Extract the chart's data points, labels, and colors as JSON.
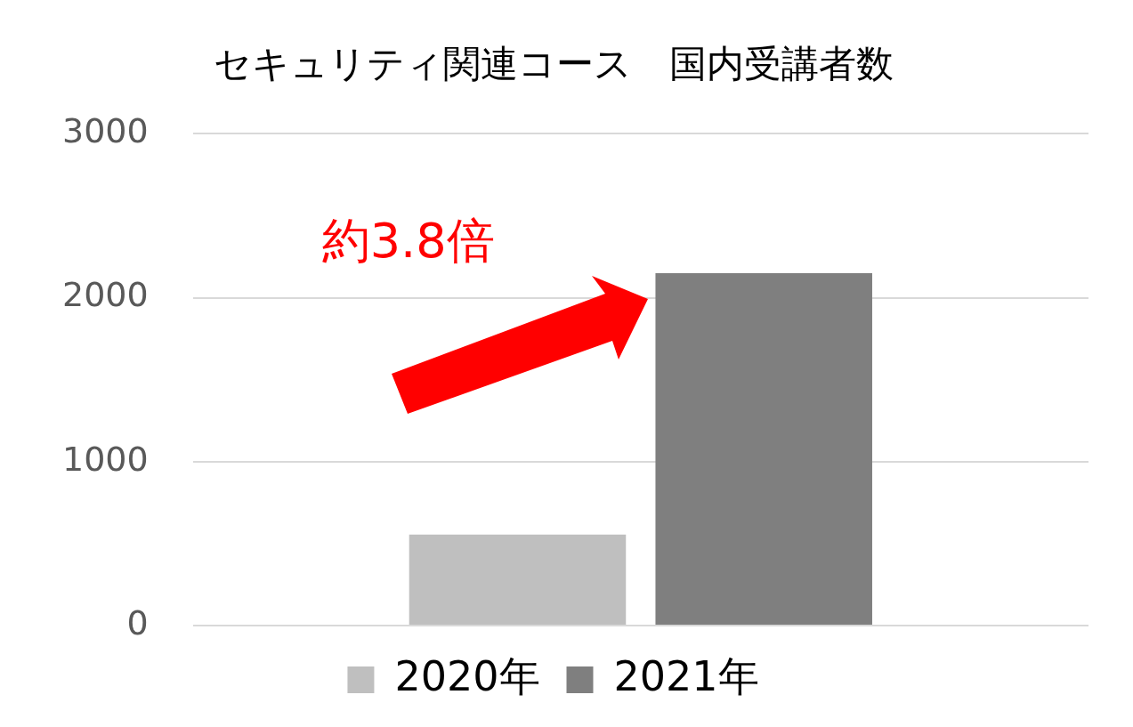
{
  "chart_data": {
    "type": "bar",
    "title": "セキュリティ関連コース　国内受講者数",
    "categories": [
      null
    ],
    "series": [
      {
        "name": "2020年",
        "color": "#bfbfbf",
        "values": [
          555
        ]
      },
      {
        "name": "2021年",
        "color": "#7f7f7f",
        "values": [
          2150
        ]
      }
    ],
    "ylim": [
      0,
      3000
    ],
    "yticks": [
      0,
      1000,
      2000,
      3000
    ],
    "grid": "y",
    "legend": "bottom",
    "tick_labels": "y",
    "annotations": [
      "約3.8倍"
    ]
  }
}
